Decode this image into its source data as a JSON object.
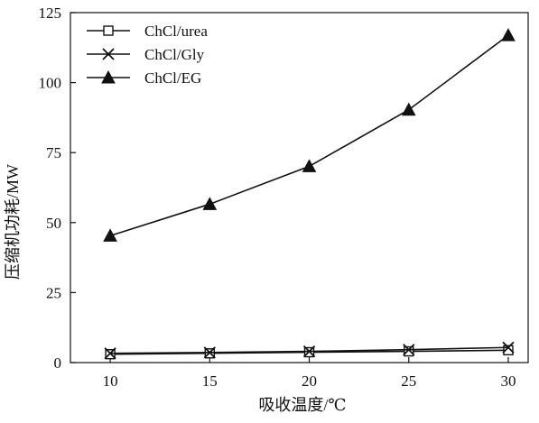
{
  "chart_data": {
    "type": "line",
    "title": "",
    "xlabel": "吸收温度/℃",
    "ylabel": "压缩机功耗/MW",
    "x": [
      10,
      15,
      20,
      25,
      30
    ],
    "xlim": [
      8,
      31
    ],
    "ylim": [
      0,
      125
    ],
    "xticks": [
      "10",
      "15",
      "20",
      "25",
      "30"
    ],
    "yticks": [
      "0",
      "25",
      "50",
      "75",
      "100",
      "125"
    ],
    "grid": false,
    "legend_position": "top-left",
    "series": [
      {
        "name": "ChCl/urea",
        "marker": "open-square",
        "values": [
          3.0,
          3.3,
          3.7,
          4.0,
          4.4
        ]
      },
      {
        "name": "ChCl/Gly",
        "marker": "x",
        "values": [
          3.3,
          3.6,
          4.0,
          4.6,
          5.4
        ]
      },
      {
        "name": "ChCl/EG",
        "marker": "filled-triangle",
        "values": [
          45.3,
          56.6,
          70.1,
          90.3,
          116.9
        ]
      }
    ],
    "colors": {
      "line": "#111111",
      "background": "#ffffff"
    }
  }
}
